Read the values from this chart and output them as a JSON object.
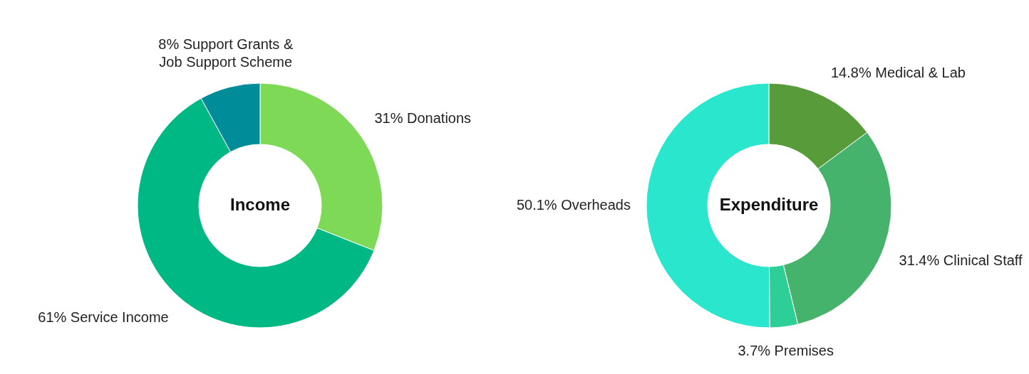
{
  "chart_data": [
    {
      "type": "donut",
      "title": "Income",
      "categories": [
        "Donations",
        "Service Income",
        "Support Grants & Job Support Scheme"
      ],
      "values": [
        31,
        61,
        8
      ],
      "value_labels": [
        "31%",
        "61%",
        "8%"
      ],
      "colors": [
        "#7ed957",
        "#00b884",
        "#008c99"
      ],
      "legend": false
    },
    {
      "type": "donut",
      "title": "Expenditure",
      "categories": [
        "Medical & Lab",
        "Clinical Staff",
        "Premises",
        "Overheads"
      ],
      "values": [
        14.8,
        31.4,
        3.7,
        50.1
      ],
      "value_labels": [
        "14.8%",
        "31.4%",
        "3.7%",
        "50.1%"
      ],
      "colors": [
        "#579b3a",
        "#45b36b",
        "#2ecf97",
        "#2ae6cc"
      ],
      "legend": false
    }
  ]
}
